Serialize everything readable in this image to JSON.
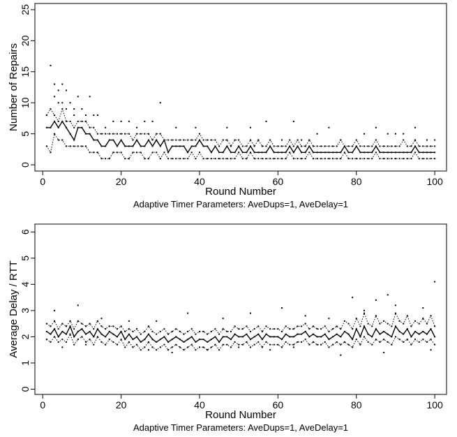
{
  "chart_data": [
    {
      "type": "scatter",
      "title": "",
      "xlabel": "Round Number",
      "ylabel": "Number of Repairs",
      "caption": "Adaptive Timer Parameters:  AveDups=1, AveDelay=1",
      "xlim": [
        -2,
        103
      ],
      "ylim": [
        -1,
        26
      ],
      "xticks": [
        0,
        20,
        40,
        60,
        80,
        100
      ],
      "yticks": [
        0,
        5,
        10,
        15,
        20,
        25
      ],
      "grid": false,
      "x": [
        1,
        2,
        3,
        4,
        5,
        6,
        7,
        8,
        9,
        10,
        11,
        12,
        13,
        14,
        15,
        16,
        17,
        18,
        19,
        20,
        21,
        22,
        23,
        24,
        25,
        26,
        27,
        28,
        29,
        30,
        31,
        32,
        33,
        34,
        35,
        36,
        37,
        38,
        39,
        40,
        41,
        42,
        43,
        44,
        45,
        46,
        47,
        48,
        49,
        50,
        51,
        52,
        53,
        54,
        55,
        56,
        57,
        58,
        59,
        60,
        61,
        62,
        63,
        64,
        65,
        66,
        67,
        68,
        69,
        70,
        71,
        72,
        73,
        74,
        75,
        76,
        77,
        78,
        79,
        80,
        81,
        82,
        83,
        84,
        85,
        86,
        87,
        88,
        89,
        90,
        91,
        92,
        93,
        94,
        95,
        96,
        97,
        98,
        99,
        100
      ],
      "series": [
        {
          "values": [
            6,
            6,
            7,
            6,
            7,
            6,
            5,
            4,
            6,
            6,
            5,
            5,
            4,
            4,
            3,
            3,
            4,
            4,
            3,
            4,
            3,
            3,
            3,
            4,
            3,
            3,
            4,
            3,
            4,
            3,
            4,
            2,
            3,
            3,
            3,
            3,
            2,
            3,
            3,
            4,
            3,
            3,
            2,
            3,
            2,
            2,
            3,
            2,
            2,
            3,
            2,
            2,
            3,
            2,
            2,
            2,
            2,
            3,
            2,
            2,
            2,
            2,
            3,
            2,
            3,
            2,
            2,
            3,
            2,
            2,
            2,
            2,
            2,
            2,
            2,
            2,
            3,
            2,
            2,
            3,
            2,
            2,
            2,
            2,
            3,
            2,
            2,
            2,
            2,
            2,
            2,
            2,
            2,
            2,
            3,
            2,
            2,
            2,
            2,
            2
          ],
          "style": "solid"
        },
        {
          "values": [
            8,
            9,
            8,
            7,
            9,
            7,
            7,
            6,
            7,
            7,
            7,
            6,
            6,
            5,
            5,
            5,
            5,
            5,
            5,
            5,
            5,
            5,
            4,
            5,
            5,
            5,
            5,
            4,
            5,
            5,
            4,
            4,
            4,
            4,
            4,
            4,
            4,
            4,
            4,
            5,
            4,
            4,
            4,
            4,
            3,
            4,
            4,
            3,
            4,
            4,
            3,
            3,
            4,
            3,
            4,
            3,
            3,
            4,
            3,
            3,
            3,
            3,
            4,
            3,
            4,
            3,
            3,
            4,
            3,
            3,
            3,
            3,
            3,
            3,
            3,
            4,
            3,
            3,
            3,
            4,
            3,
            3,
            3,
            3,
            4,
            3,
            3,
            3,
            3,
            3,
            3,
            4,
            3,
            3,
            4,
            3,
            3,
            3,
            3,
            3
          ],
          "style": "dotted"
        },
        {
          "values": [
            3,
            2,
            5,
            4,
            4,
            3,
            3,
            3,
            3,
            3,
            3,
            2,
            2,
            2,
            1,
            1,
            1,
            2,
            2,
            2,
            1,
            1,
            2,
            2,
            2,
            1,
            1,
            2,
            2,
            1,
            2,
            1,
            1,
            1,
            1,
            1,
            1,
            2,
            1,
            2,
            1,
            1,
            1,
            1,
            1,
            1,
            1,
            1,
            1,
            2,
            1,
            1,
            2,
            1,
            1,
            1,
            1,
            1,
            1,
            1,
            1,
            1,
            2,
            1,
            1,
            1,
            1,
            2,
            1,
            1,
            1,
            1,
            1,
            1,
            1,
            1,
            2,
            1,
            1,
            1,
            1,
            1,
            1,
            1,
            2,
            1,
            1,
            1,
            1,
            1,
            1,
            1,
            1,
            1,
            2,
            1,
            1,
            1,
            1,
            1
          ],
          "style": "dotted"
        }
      ],
      "scatter_points": [
        [
          2,
          16
        ],
        [
          3,
          13
        ],
        [
          5,
          13
        ],
        [
          3,
          11
        ],
        [
          4,
          12
        ],
        [
          6,
          12
        ],
        [
          9,
          11
        ],
        [
          12,
          11
        ],
        [
          30,
          10
        ],
        [
          26,
          7
        ],
        [
          28,
          7
        ],
        [
          57,
          7
        ],
        [
          64,
          7
        ],
        [
          73,
          6
        ],
        [
          85,
          6
        ],
        [
          95,
          6
        ],
        [
          53,
          6
        ],
        [
          47,
          6
        ],
        [
          34,
          6
        ],
        [
          39,
          6
        ],
        [
          4,
          10
        ],
        [
          5,
          10
        ],
        [
          7,
          10
        ],
        [
          8,
          9
        ],
        [
          10,
          9
        ],
        [
          13,
          8
        ],
        [
          14,
          8
        ],
        [
          6,
          9
        ],
        [
          8,
          8
        ],
        [
          11,
          8
        ],
        [
          18,
          7
        ],
        [
          20,
          7
        ],
        [
          22,
          7
        ],
        [
          24,
          6
        ],
        [
          16,
          6
        ],
        [
          90,
          5
        ],
        [
          88,
          5
        ],
        [
          70,
          5
        ],
        [
          82,
          5
        ],
        [
          92,
          5
        ],
        [
          100,
          4
        ],
        [
          98,
          4
        ],
        [
          76,
          4
        ],
        [
          66,
          4
        ],
        [
          61,
          4
        ],
        [
          55,
          4
        ],
        [
          44,
          4
        ],
        [
          42,
          4
        ]
      ]
    },
    {
      "type": "scatter",
      "title": "",
      "xlabel": "Round Number",
      "ylabel": "Average Delay / RTT",
      "caption": "Adaptive Timer Parameters:  AveDups=1, AveDelay=1",
      "xlim": [
        -2,
        103
      ],
      "ylim": [
        -0.2,
        6.3
      ],
      "xticks": [
        0,
        20,
        40,
        60,
        80,
        100
      ],
      "yticks": [
        0,
        1,
        2,
        3,
        4,
        5,
        6
      ],
      "grid": false,
      "x": [
        1,
        2,
        3,
        4,
        5,
        6,
        7,
        8,
        9,
        10,
        11,
        12,
        13,
        14,
        15,
        16,
        17,
        18,
        19,
        20,
        21,
        22,
        23,
        24,
        25,
        26,
        27,
        28,
        29,
        30,
        31,
        32,
        33,
        34,
        35,
        36,
        37,
        38,
        39,
        40,
        41,
        42,
        43,
        44,
        45,
        46,
        47,
        48,
        49,
        50,
        51,
        52,
        53,
        54,
        55,
        56,
        57,
        58,
        59,
        60,
        61,
        62,
        63,
        64,
        65,
        66,
        67,
        68,
        69,
        70,
        71,
        72,
        73,
        74,
        75,
        76,
        77,
        78,
        79,
        80,
        81,
        82,
        83,
        84,
        85,
        86,
        87,
        88,
        89,
        90,
        91,
        92,
        93,
        94,
        95,
        96,
        97,
        98,
        99,
        100
      ],
      "series": [
        {
          "values": [
            2.2,
            2.1,
            2.3,
            2.0,
            2.2,
            2.1,
            2.4,
            2.0,
            2.2,
            2.3,
            2.1,
            2.2,
            2.0,
            2.3,
            2.1,
            2.0,
            2.2,
            2.1,
            2.0,
            2.2,
            1.9,
            2.1,
            1.9,
            2.0,
            1.8,
            1.9,
            2.1,
            1.9,
            1.8,
            1.9,
            2.0,
            1.8,
            1.9,
            2.0,
            1.9,
            1.8,
            1.9,
            2.0,
            1.8,
            1.9,
            1.9,
            1.8,
            1.9,
            2.0,
            1.8,
            2.0,
            2.0,
            1.9,
            2.1,
            2.0,
            2.0,
            2.1,
            1.9,
            2.0,
            2.1,
            1.9,
            2.1,
            2.0,
            2.0,
            2.0,
            1.9,
            2.1,
            2.0,
            2.0,
            2.1,
            2.1,
            2.2,
            2.0,
            2.1,
            2.0,
            2.0,
            2.1,
            1.9,
            2.0,
            2.1,
            2.0,
            2.2,
            2.1,
            1.9,
            2.3,
            2.0,
            2.4,
            2.1,
            2.0,
            2.3,
            2.1,
            2.2,
            2.1,
            2.0,
            2.4,
            2.2,
            2.1,
            2.3,
            2.0,
            2.2,
            2.1,
            2.2,
            2.1,
            2.3,
            2.0
          ],
          "style": "solid"
        },
        {
          "values": [
            2.5,
            2.4,
            2.6,
            2.3,
            2.5,
            2.4,
            2.6,
            2.3,
            2.6,
            2.5,
            2.4,
            2.5,
            2.3,
            2.6,
            2.4,
            2.3,
            2.4,
            2.4,
            2.3,
            2.4,
            2.2,
            2.3,
            2.2,
            2.3,
            2.1,
            2.2,
            2.4,
            2.2,
            2.1,
            2.2,
            2.3,
            2.1,
            2.2,
            2.3,
            2.2,
            2.1,
            2.2,
            2.3,
            2.1,
            2.2,
            2.2,
            2.1,
            2.2,
            2.3,
            2.1,
            2.3,
            2.2,
            2.2,
            2.4,
            2.3,
            2.3,
            2.4,
            2.2,
            2.3,
            2.4,
            2.2,
            2.4,
            2.3,
            2.3,
            2.3,
            2.2,
            2.4,
            2.3,
            2.3,
            2.4,
            2.4,
            2.5,
            2.3,
            2.4,
            2.3,
            2.3,
            2.4,
            2.2,
            2.3,
            2.4,
            2.3,
            2.6,
            2.5,
            2.3,
            2.7,
            2.4,
            2.9,
            2.5,
            2.4,
            2.8,
            2.5,
            2.6,
            2.5,
            2.4,
            2.9,
            2.6,
            2.5,
            2.8,
            2.4,
            2.6,
            2.5,
            2.7,
            2.5,
            2.8,
            2.4
          ],
          "style": "dotted"
        },
        {
          "values": [
            1.9,
            1.8,
            2.0,
            1.8,
            1.9,
            1.8,
            2.1,
            1.7,
            1.9,
            2.0,
            1.8,
            1.9,
            1.7,
            2.0,
            1.8,
            1.7,
            1.9,
            1.8,
            1.7,
            1.9,
            1.6,
            1.8,
            1.6,
            1.7,
            1.5,
            1.6,
            1.8,
            1.6,
            1.5,
            1.6,
            1.7,
            1.5,
            1.6,
            1.7,
            1.6,
            1.5,
            1.6,
            1.7,
            1.5,
            1.6,
            1.6,
            1.5,
            1.6,
            1.7,
            1.5,
            1.7,
            1.7,
            1.6,
            1.8,
            1.7,
            1.7,
            1.8,
            1.6,
            1.7,
            1.8,
            1.6,
            1.8,
            1.7,
            1.7,
            1.7,
            1.6,
            1.8,
            1.7,
            1.7,
            1.8,
            1.8,
            1.9,
            1.7,
            1.8,
            1.7,
            1.7,
            1.8,
            1.6,
            1.7,
            1.8,
            1.7,
            1.8,
            1.7,
            1.6,
            1.9,
            1.7,
            2.0,
            1.8,
            1.7,
            1.9,
            1.8,
            1.9,
            1.8,
            1.7,
            2.0,
            1.9,
            1.8,
            1.9,
            1.7,
            1.9,
            1.8,
            1.9,
            1.8,
            1.9,
            1.7
          ],
          "style": "dotted"
        }
      ],
      "scatter_points": [
        [
          100,
          4.1
        ],
        [
          9,
          3.2
        ],
        [
          3,
          3.0
        ],
        [
          37,
          2.9
        ],
        [
          53,
          2.9
        ],
        [
          61,
          3.1
        ],
        [
          67,
          2.8
        ],
        [
          79,
          3.5
        ],
        [
          85,
          3.4
        ],
        [
          88,
          3.6
        ],
        [
          90,
          3.2
        ],
        [
          97,
          3.1
        ],
        [
          82,
          3.0
        ],
        [
          73,
          2.7
        ],
        [
          46,
          2.7
        ],
        [
          29,
          2.6
        ],
        [
          15,
          2.7
        ],
        [
          22,
          2.6
        ],
        [
          76,
          1.3
        ],
        [
          87,
          1.4
        ],
        [
          99,
          1.5
        ],
        [
          33,
          1.4
        ],
        [
          27,
          1.5
        ],
        [
          42,
          1.5
        ],
        [
          58,
          1.5
        ],
        [
          64,
          1.6
        ],
        [
          50,
          1.6
        ],
        [
          11,
          1.7
        ],
        [
          5,
          1.6
        ]
      ]
    }
  ]
}
